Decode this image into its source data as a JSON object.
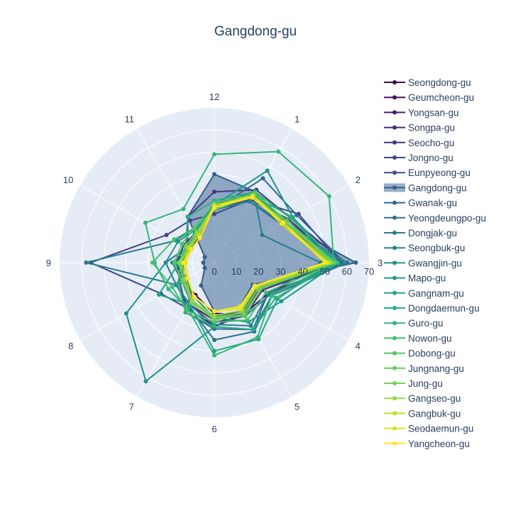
{
  "chart_data": {
    "type": "radar",
    "title": "Gangdong-gu",
    "angular_ticks": [
      "12",
      "1",
      "2",
      "3",
      "4",
      "5",
      "6",
      "7",
      "8",
      "9",
      "10",
      "11"
    ],
    "radial_range": [
      0,
      70
    ],
    "radial_ticks": [
      "0",
      "10",
      "20",
      "30",
      "40",
      "50",
      "60",
      "70"
    ],
    "highlight_series": "Gangdong-gu",
    "series": [
      {
        "name": "Seongdong-gu",
        "color": "#440154",
        "values": [
          26,
          37,
          37,
          52,
          28,
          27,
          23,
          17,
          16,
          17,
          12,
          14
        ]
      },
      {
        "name": "Geumcheon-gu",
        "color": "#470f62",
        "values": [
          24,
          32,
          36,
          56,
          24,
          26,
          26,
          22,
          15,
          15,
          12,
          14
        ]
      },
      {
        "name": "Yongsan-gu",
        "color": "#481d6f",
        "values": [
          24,
          32,
          35,
          54,
          23,
          25,
          25,
          20,
          14,
          18,
          13,
          14
        ]
      },
      {
        "name": "Songpa-gu",
        "color": "#472a7a",
        "values": [
          24,
          33,
          39,
          56,
          25,
          28,
          27,
          25,
          18,
          17,
          16,
          16
        ]
      },
      {
        "name": "Seocho-gu",
        "color": "#453781",
        "values": [
          32,
          38,
          40,
          59,
          23,
          27,
          29,
          22,
          15,
          15,
          14,
          24
        ]
      },
      {
        "name": "Jongno-gu",
        "color": "#414487",
        "values": [
          22,
          33,
          44,
          57,
          22,
          26,
          29,
          24,
          28,
          56,
          25,
          22
        ]
      },
      {
        "name": "Eunpyeong-gu",
        "color": "#3c4f8a",
        "values": [
          24,
          33,
          38,
          58,
          22,
          27,
          24,
          21,
          16,
          14,
          15,
          16
        ]
      },
      {
        "name": "Gangdong-gu",
        "color": "#355f8d",
        "values": [
          40,
          37,
          36,
          64,
          20,
          23,
          22,
          12,
          5,
          5,
          5,
          24
        ]
      },
      {
        "name": "Gwanak-gu",
        "color": "#31688e",
        "values": [
          24,
          44,
          43,
          59,
          28,
          35,
          30,
          26,
          18,
          14,
          12,
          16
        ]
      },
      {
        "name": "Yeongdeungpo-gu",
        "color": "#2d708e",
        "values": [
          26,
          32,
          35,
          60,
          30,
          36,
          35,
          23,
          20,
          22,
          14,
          16
        ]
      },
      {
        "name": "Dongjak-gu",
        "color": "#287c8e",
        "values": [
          26,
          36,
          25,
          48,
          28,
          33,
          28,
          22,
          20,
          58,
          20,
          18
        ]
      },
      {
        "name": "Seongbuk-gu",
        "color": "#25858e",
        "values": [
          24,
          32,
          36,
          59,
          29,
          28,
          24,
          21,
          17,
          19,
          14,
          17
        ]
      },
      {
        "name": "Gwangjin-gu",
        "color": "#21918c",
        "values": [
          26,
          48,
          41,
          55,
          30,
          35,
          29,
          62,
          46,
          22,
          19,
          17
        ]
      },
      {
        "name": "Mapo-gu",
        "color": "#1e9b8a",
        "values": [
          27,
          36,
          36,
          56,
          35,
          31,
          25,
          18,
          15,
          17,
          13,
          16
        ]
      },
      {
        "name": "Gangnam-gu",
        "color": "#22a785",
        "values": [
          25,
          35,
          41,
          52,
          33,
          40,
          40,
          22,
          29,
          16,
          12,
          16
        ]
      },
      {
        "name": "Dongdaemun-gu",
        "color": "#2ab07f",
        "values": [
          28,
          37,
          40,
          56,
          32,
          35,
          29,
          26,
          19,
          15,
          15,
          24
        ]
      },
      {
        "name": "Guro-gu",
        "color": "#35b779",
        "values": [
          49,
          58,
          60,
          54,
          30,
          39,
          42,
          24,
          24,
          27,
          36,
          28
        ]
      },
      {
        "name": "Nowon-gu",
        "color": "#44bf70",
        "values": [
          24,
          37,
          37,
          55,
          27,
          30,
          27,
          25,
          22,
          28,
          21,
          18
        ]
      },
      {
        "name": "Dobong-gu",
        "color": "#55c667",
        "values": [
          27,
          36,
          38,
          54,
          24,
          28,
          25,
          20,
          17,
          18,
          17,
          18
        ]
      },
      {
        "name": "Jungnang-gu",
        "color": "#6ccd5a",
        "values": [
          25,
          35,
          37,
          54,
          24,
          27,
          26,
          20,
          16,
          16,
          15,
          16
        ]
      },
      {
        "name": "Jung-gu",
        "color": "#7ad151",
        "values": [
          24,
          35,
          37,
          53,
          23,
          26,
          25,
          21,
          16,
          16,
          13,
          16
        ]
      },
      {
        "name": "Gangseo-gu",
        "color": "#95d840",
        "values": [
          26,
          34,
          36,
          52,
          22,
          25,
          24,
          20,
          15,
          15,
          14,
          15
        ]
      },
      {
        "name": "Gangbuk-gu",
        "color": "#bddf26",
        "values": [
          26,
          35,
          36,
          52,
          22,
          24,
          22,
          18,
          14,
          14,
          13,
          14
        ]
      },
      {
        "name": "Seodaemun-gu",
        "color": "#dfe318",
        "values": [
          25,
          35,
          35,
          51,
          21,
          24,
          22,
          18,
          14,
          13,
          12,
          13
        ]
      },
      {
        "name": "Yangcheon-gu",
        "color": "#fde725",
        "values": [
          25,
          34,
          36,
          50,
          21,
          23,
          22,
          18,
          14,
          14,
          12,
          13
        ]
      }
    ]
  }
}
